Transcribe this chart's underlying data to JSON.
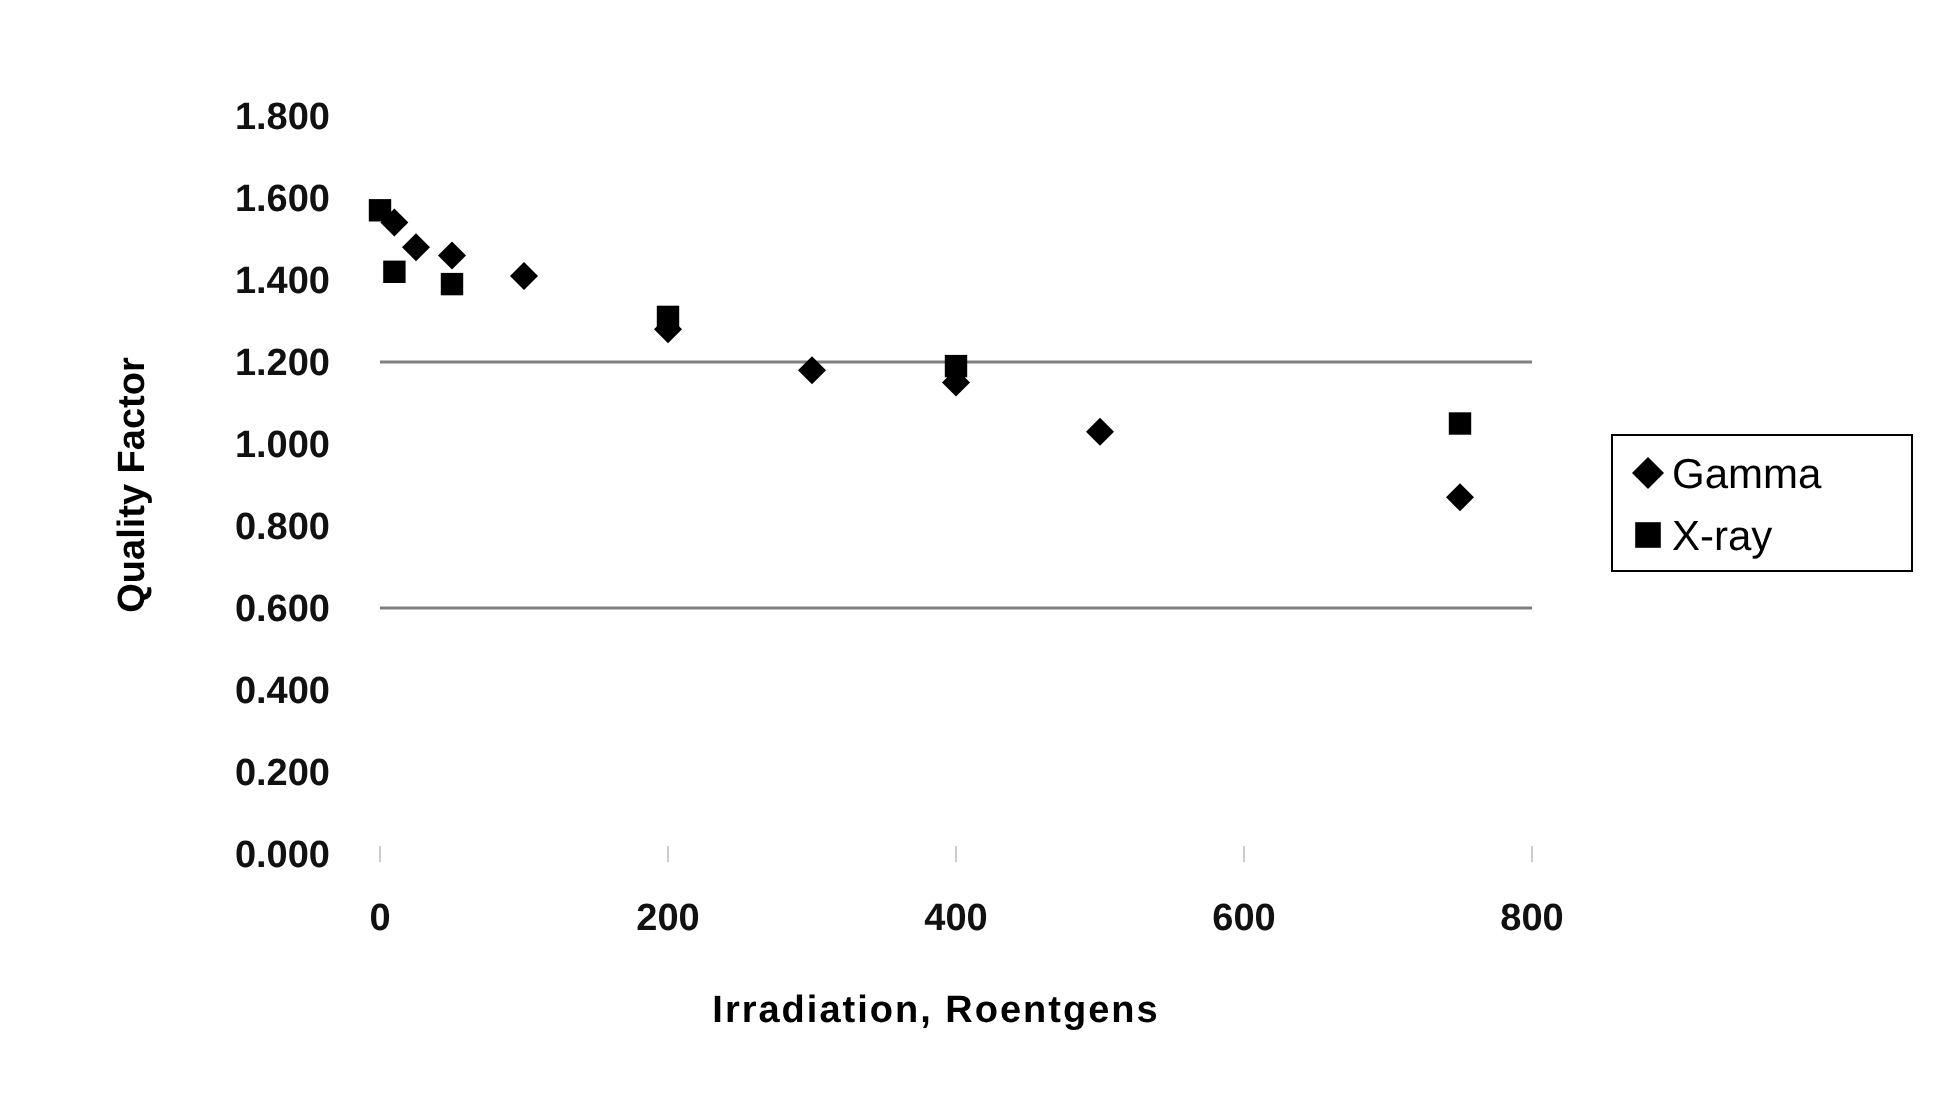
{
  "chart_data": {
    "type": "scatter",
    "xlabel": "Irradiation, Roentgens",
    "ylabel": "Quality Factor",
    "xlim": [
      0,
      800
    ],
    "xticks": [
      0,
      200,
      400,
      600,
      800
    ],
    "ylim": [
      0,
      1.8
    ],
    "yticks": [
      {
        "value": 0,
        "label": "0.000"
      },
      {
        "value": 0.2,
        "label": "0.200"
      },
      {
        "value": 0.4,
        "label": "0.400"
      },
      {
        "value": 0.6,
        "label": "0.600"
      },
      {
        "value": 0.8,
        "label": "0.800"
      },
      {
        "value": 1,
        "label": "1.000"
      },
      {
        "value": 1.2,
        "label": "1.200"
      },
      {
        "value": 1.4,
        "label": "1.400"
      },
      {
        "value": 1.6,
        "label": "1.600"
      },
      {
        "value": 1.8,
        "label": "1.800"
      }
    ],
    "grid": false,
    "legend": "right",
    "ref_lines": [
      {
        "axis": "y",
        "value": 1.2,
        "color": "#808080"
      },
      {
        "axis": "y",
        "value": 0.6,
        "color": "#808080"
      }
    ],
    "series": [
      {
        "name": "Gamma",
        "color": "#000000",
        "marker": "diamond",
        "x": [
          10,
          25,
          50,
          100,
          200,
          300,
          400,
          500,
          750
        ],
        "values": [
          1.54,
          1.48,
          1.46,
          1.41,
          1.28,
          1.18,
          1.15,
          1.03,
          0.87
        ]
      },
      {
        "name": "X-ray",
        "color": "#000000",
        "marker": "square",
        "x": [
          0,
          10,
          50,
          200,
          400,
          750
        ],
        "values": [
          1.57,
          1.42,
          1.39,
          1.31,
          1.19,
          1.05
        ]
      }
    ]
  }
}
